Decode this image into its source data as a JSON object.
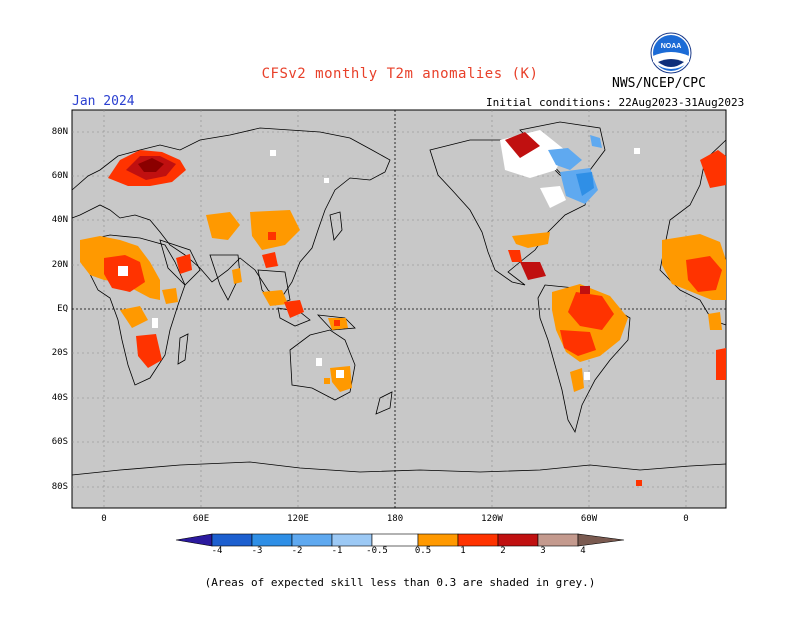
{
  "title": "CFSv2 monthly T2m anomalies (K)",
  "organization": "NWS/NCEP/CPC",
  "logo_text": "NOAA",
  "valid_month": "Jan 2024",
  "initial_conditions": "Initial conditions: 22Aug2023-31Aug2023",
  "lat_labels": [
    "80N",
    "60N",
    "40N",
    "20N",
    "EQ",
    "20S",
    "40S",
    "60S",
    "80S"
  ],
  "lon_labels": [
    "0",
    "60E",
    "120E",
    "180",
    "120W",
    "60W",
    "0"
  ],
  "colorbar": {
    "labels": [
      "-4",
      "-3",
      "-2",
      "-1",
      "-0.5",
      "0.5",
      "1",
      "2",
      "3",
      "4"
    ],
    "colors": [
      "#2b1a9e",
      "#1d5fcf",
      "#2f8fe6",
      "#5fa9f0",
      "#9cc9f5",
      "#ffffff",
      "#ff9900",
      "#ff3300",
      "#c01010",
      "#8b0000",
      "#c49a8e",
      "#7a5a50"
    ]
  },
  "colors": {
    "ocean": "#c8c8c8",
    "warm1": "#ff9900",
    "warm2": "#ff3300",
    "warm3": "#c01010",
    "warm4": "#8b0000",
    "cool1": "#9cc9f5",
    "cool2": "#5fa9f0",
    "neutral": "#ffffff",
    "title": "#e8402a",
    "month": "#2a3fd0"
  },
  "footnote": "(Areas of expected skill less than 0.3 are shaded in grey.)"
}
